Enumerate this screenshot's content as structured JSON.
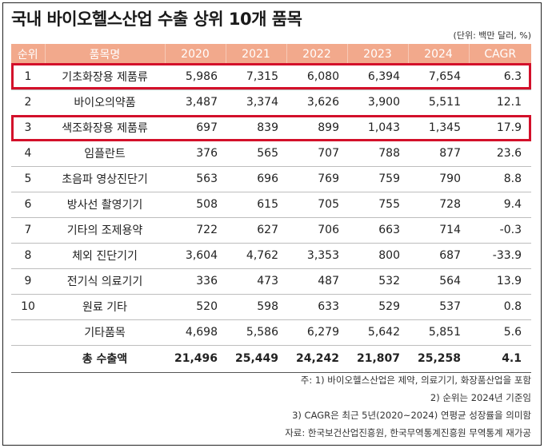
{
  "title": "국내 바이오헬스산업 수출 상위 10개 품목",
  "unit": "(단위: 백만 달러, %)",
  "colors": {
    "header_bg": "#f2a98c",
    "highlight": "#d3102a"
  },
  "headers": [
    "순위",
    "품목명",
    "2020",
    "2021",
    "2022",
    "2023",
    "2024",
    "CAGR"
  ],
  "rows": [
    {
      "rank": "1",
      "name": "기초화장용 제품류",
      "v": [
        "5,986",
        "7,315",
        "6,080",
        "6,394",
        "7,654"
      ],
      "cagr": "6.3"
    },
    {
      "rank": "2",
      "name": "바이오의약품",
      "v": [
        "3,487",
        "3,374",
        "3,626",
        "3,900",
        "5,511"
      ],
      "cagr": "12.1"
    },
    {
      "rank": "3",
      "name": "색조화장용 제품류",
      "v": [
        "697",
        "839",
        "899",
        "1,043",
        "1,345"
      ],
      "cagr": "17.9"
    },
    {
      "rank": "4",
      "name": "임플란트",
      "v": [
        "376",
        "565",
        "707",
        "788",
        "877"
      ],
      "cagr": "23.6"
    },
    {
      "rank": "5",
      "name": "초음파 영상진단기",
      "v": [
        "563",
        "696",
        "769",
        "759",
        "790"
      ],
      "cagr": "8.8"
    },
    {
      "rank": "6",
      "name": "방사선 촬영기기",
      "v": [
        "508",
        "615",
        "705",
        "755",
        "728"
      ],
      "cagr": "9.4"
    },
    {
      "rank": "7",
      "name": "기타의 조제용약",
      "v": [
        "722",
        "627",
        "706",
        "663",
        "714"
      ],
      "cagr": "-0.3"
    },
    {
      "rank": "8",
      "name": "체외 진단기기",
      "v": [
        "3,604",
        "4,762",
        "3,353",
        "800",
        "687"
      ],
      "cagr": "-33.9"
    },
    {
      "rank": "9",
      "name": "전기식 의료기기",
      "v": [
        "336",
        "473",
        "487",
        "532",
        "564"
      ],
      "cagr": "13.9"
    },
    {
      "rank": "10",
      "name": "원료 기타",
      "v": [
        "520",
        "598",
        "633",
        "529",
        "537"
      ],
      "cagr": "0.8"
    },
    {
      "rank": "",
      "name": "기타품목",
      "v": [
        "4,698",
        "5,586",
        "6,279",
        "5,642",
        "5,851"
      ],
      "cagr": "5.6"
    },
    {
      "rank": "",
      "name": "총 수출액",
      "v": [
        "21,496",
        "25,449",
        "24,242",
        "21,807",
        "25,258"
      ],
      "cagr": "4.1",
      "total": true
    }
  ],
  "notes": [
    "주: 1) 바이오헬스산업은 제약, 의료기기, 화장품산업을 포함",
    "2) 순위는 2024년 기준임",
    "3) CAGR은 최근 5년(2020~2024) 연평균 성장률을 의미함",
    "자료: 한국보건산업진흥원, 한국무역통계진흥원 무역통계 재가공"
  ]
}
